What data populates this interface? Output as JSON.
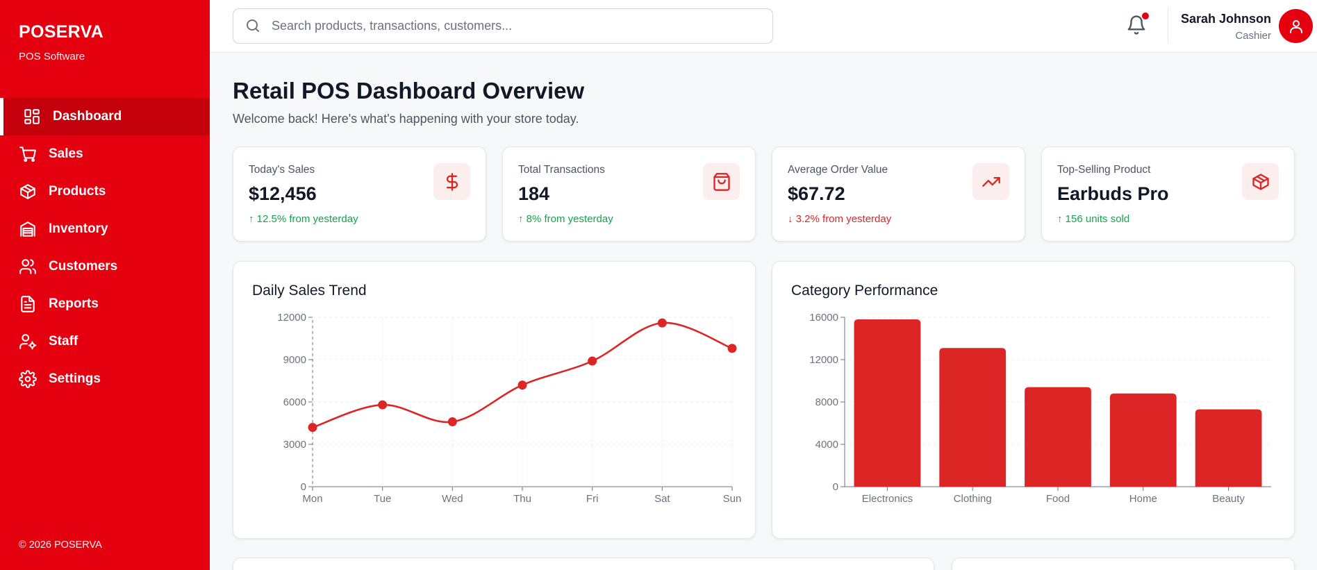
{
  "brand": {
    "name": "POSERVA",
    "subtitle": "POS Software"
  },
  "sidebar": {
    "items": [
      {
        "label": "Dashboard",
        "icon": "dashboard-icon",
        "active": true
      },
      {
        "label": "Sales",
        "icon": "cart-icon",
        "active": false
      },
      {
        "label": "Products",
        "icon": "box-icon",
        "active": false
      },
      {
        "label": "Inventory",
        "icon": "warehouse-icon",
        "active": false
      },
      {
        "label": "Customers",
        "icon": "users-icon",
        "active": false
      },
      {
        "label": "Reports",
        "icon": "file-text-icon",
        "active": false
      },
      {
        "label": "Staff",
        "icon": "user-cog-icon",
        "active": false
      },
      {
        "label": "Settings",
        "icon": "gear-icon",
        "active": false
      }
    ],
    "copyright": "© 2026 POSERVA"
  },
  "header": {
    "search_placeholder": "Search products, transactions, customers...",
    "notifications": {
      "has_unread": true
    },
    "user": {
      "name": "Sarah Johnson",
      "role": "Cashier"
    }
  },
  "main": {
    "title": "Retail POS Dashboard Overview",
    "subtitle": "Welcome back! Here's what's happening with your store today."
  },
  "stats": [
    {
      "label": "Today's Sales",
      "value": "$12,456",
      "change": "↑ 12.5% from yesterday",
      "trend": "up",
      "icon": "dollar-icon"
    },
    {
      "label": "Total Transactions",
      "value": "184",
      "change": "↑ 8% from yesterday",
      "trend": "up",
      "icon": "shopping-bag-icon"
    },
    {
      "label": "Average Order Value",
      "value": "$67.72",
      "change": "↓ 3.2% from yesterday",
      "trend": "down",
      "icon": "trending-up-icon"
    },
    {
      "label": "Top-Selling Product",
      "value": "Earbuds Pro",
      "change": "↑ 156 units sold",
      "trend": "up",
      "icon": "package-icon"
    }
  ],
  "colors": {
    "brand": "#e5000f",
    "brand_dark": "#c4000d",
    "chart_red": "#dc2626",
    "up": "#16a34a",
    "down": "#dc2626"
  },
  "chart_data": [
    {
      "type": "line",
      "title": "Daily Sales Trend",
      "categories": [
        "Mon",
        "Tue",
        "Wed",
        "Thu",
        "Fri",
        "Sat",
        "Sun"
      ],
      "values": [
        4200,
        5800,
        4600,
        7200,
        8900,
        11600,
        9800
      ],
      "ylim": [
        0,
        12000
      ],
      "yticks": [
        0,
        3000,
        6000,
        9000,
        12000
      ],
      "grid": true,
      "smooth": true
    },
    {
      "type": "bar",
      "title": "Category Performance",
      "categories": [
        "Electronics",
        "Clothing",
        "Food",
        "Home",
        "Beauty"
      ],
      "values": [
        15800,
        13100,
        9400,
        8800,
        7300
      ],
      "ylim": [
        0,
        16000
      ],
      "yticks": [
        0,
        4000,
        8000,
        12000,
        16000
      ],
      "grid": true
    }
  ]
}
